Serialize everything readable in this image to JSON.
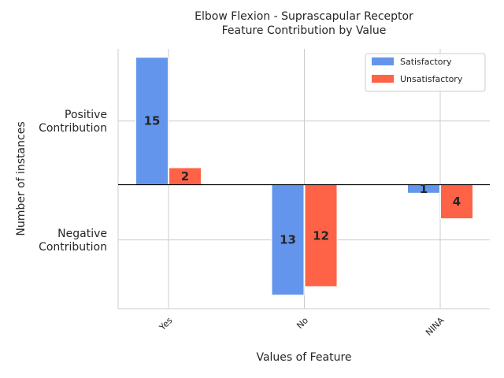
{
  "chart_data": {
    "type": "bar",
    "title_lines": [
      "Elbow Flexion - Suprascapular Receptor",
      "Feature Contribution by Value"
    ],
    "xlabel": "Values of Feature",
    "ylabel": "Number of instances",
    "categories": [
      "Yes",
      "No",
      "NINA"
    ],
    "series": [
      {
        "name": "Satisfactory",
        "color": "#6495ED",
        "values": [
          15,
          -13,
          -1
        ],
        "labels": [
          "15",
          "13",
          "1"
        ]
      },
      {
        "name": "Unsatisfactory",
        "color": "#FF6347",
        "values": [
          2,
          -12,
          -4
        ],
        "labels": [
          "2",
          "12",
          "4"
        ]
      }
    ],
    "ylim": [
      -14.6,
      16.0
    ],
    "yticks": [
      {
        "value": 7.5,
        "lines": [
          "Positive",
          "Contribution"
        ]
      },
      {
        "value": -6.5,
        "lines": [
          "Negative",
          "Contribution"
        ]
      }
    ],
    "grid": true,
    "zero_line": true,
    "legend_position": "upper-right"
  }
}
